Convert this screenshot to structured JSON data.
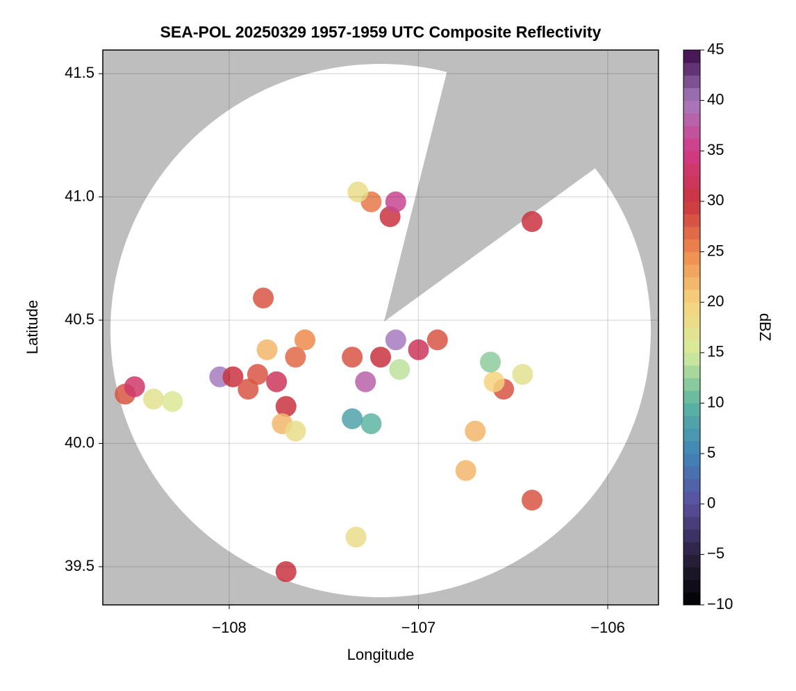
{
  "chart_data": {
    "type": "scatter",
    "title": "SEA-POL 20250329 1957-1959 UTC Composite Reflectivity",
    "x_label": "Longitude",
    "y_label": "Latitude",
    "colorbar_label": "dBZ",
    "xlim": [
      -108.668,
      -105.732
    ],
    "ylim": [
      39.345,
      41.596
    ],
    "xticks": [
      {
        "value": -108,
        "label": "−108"
      },
      {
        "value": -107,
        "label": "−107"
      },
      {
        "value": -106,
        "label": "−106"
      }
    ],
    "yticks": [
      39.5,
      {
        "value": 40,
        "label": "40.0"
      },
      40.5,
      {
        "value": 41,
        "label": "41.0"
      },
      41.5
    ],
    "grid": true,
    "clim": [
      -10,
      45
    ],
    "cticks": [
      {
        "value": -10,
        "label": "−10"
      },
      {
        "value": -5,
        "label": "−5"
      },
      0,
      5,
      10,
      15,
      20,
      25,
      30,
      35,
      40,
      45
    ],
    "colormap": [
      "#000000",
      "#2b2140",
      "#5b4f9f",
      "#3f85b8",
      "#5db5a0",
      "#d6ec9c",
      "#f6d37e",
      "#ee8a4c",
      "#c9343f",
      "#d13a86",
      "#a57bbf",
      "#3b0a48"
    ],
    "x": [
      -108.05,
      -107.98,
      -107.85,
      -107.75,
      -107.7,
      -107.65,
      -107.6,
      -107.8,
      -107.72,
      -107.9,
      -107.65,
      -108.55,
      -108.5,
      -108.4,
      -108.3,
      -107.35,
      -107.28,
      -107.2,
      -107.12,
      -107.0,
      -106.9,
      -107.1,
      -107.25,
      -107.35,
      -107.15,
      -107.25,
      -107.12,
      -107.32,
      -106.55,
      -106.6,
      -106.45,
      -107.82,
      -106.4,
      -107.7,
      -106.4,
      -106.7,
      -107.33,
      -106.62,
      -106.75
    ],
    "y": [
      40.27,
      40.27,
      40.28,
      40.25,
      40.15,
      40.35,
      40.42,
      40.38,
      40.08,
      40.22,
      40.05,
      40.2,
      40.23,
      40.18,
      40.17,
      40.35,
      40.25,
      40.35,
      40.42,
      40.38,
      40.42,
      40.3,
      40.08,
      40.1,
      40.92,
      40.98,
      40.98,
      41.02,
      40.22,
      40.25,
      40.28,
      40.59,
      40.9,
      39.48,
      39.77,
      40.05,
      39.62,
      40.33,
      39.89
    ],
    "values": [
      40,
      30,
      28,
      32,
      30,
      27,
      25,
      22,
      22,
      28,
      18,
      28,
      33,
      17,
      16,
      28,
      38,
      30,
      40,
      32,
      28,
      14,
      10,
      8,
      30,
      26,
      36,
      18,
      28,
      20,
      17,
      28,
      30,
      30,
      28,
      22,
      18,
      12,
      22
    ]
  }
}
